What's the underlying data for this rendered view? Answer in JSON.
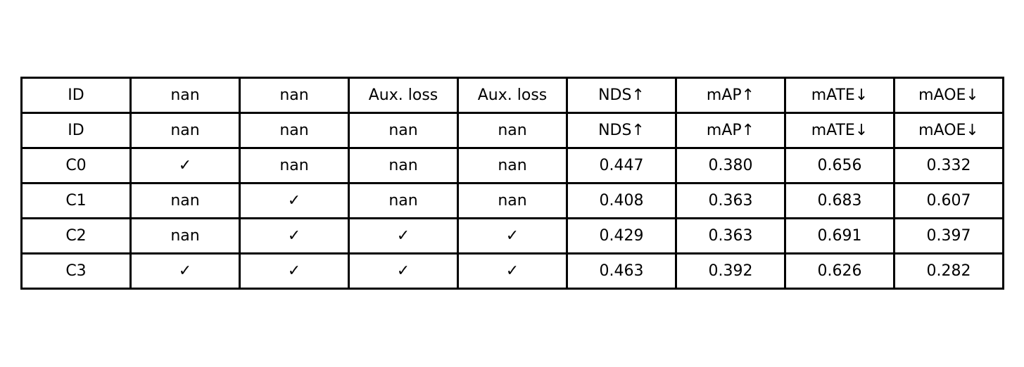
{
  "chart_data": {
    "type": "table",
    "columns": [
      "ID",
      "nan",
      "nan",
      "Aux. loss",
      "Aux. loss",
      "NDS↑",
      "mAP↑",
      "mATE↓",
      "mAOE↓"
    ],
    "rows": [
      [
        "ID",
        "nan",
        "nan",
        "nan",
        "nan",
        "NDS↑",
        "mAP↑",
        "mATE↓",
        "mAOE↓"
      ],
      [
        "C0",
        "✓",
        "nan",
        "nan",
        "nan",
        "0.447",
        "0.380",
        "0.656",
        "0.332"
      ],
      [
        "C1",
        "nan",
        "✓",
        "nan",
        "nan",
        "0.408",
        "0.363",
        "0.683",
        "0.607"
      ],
      [
        "C2",
        "nan",
        "✓",
        "✓",
        "✓",
        "0.429",
        "0.363",
        "0.691",
        "0.397"
      ],
      [
        "C3",
        "✓",
        "✓",
        "✓",
        "✓",
        "0.463",
        "0.392",
        "0.626",
        "0.282"
      ]
    ],
    "colors": {
      "border": "#000000",
      "text": "#000000",
      "background": "#ffffff"
    }
  }
}
